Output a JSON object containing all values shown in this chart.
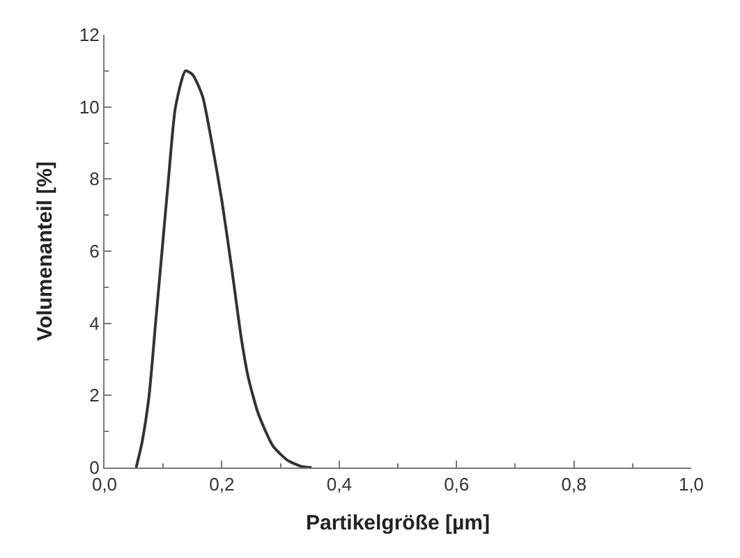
{
  "chart_data": {
    "type": "line",
    "xlabel": "Partikelgröße [µm]",
    "ylabel": "Volumenanteil [%]",
    "x": [
      0.054,
      0.064,
      0.076,
      0.087,
      0.098,
      0.109,
      0.121,
      0.138,
      0.15,
      0.167,
      0.183,
      0.2,
      0.217,
      0.233,
      0.245,
      0.262,
      0.287,
      0.312,
      0.336,
      0.353
    ],
    "series": [
      {
        "color": "#333333",
        "values": [
          0,
          0.7,
          2.0,
          4.0,
          6.0,
          8.0,
          10.0,
          11.0,
          10.9,
          10.3,
          9.0,
          7.4,
          5.5,
          3.6,
          2.5,
          1.5,
          0.6,
          0.2,
          0.03,
          0
        ]
      }
    ],
    "xlim": [
      0,
      1
    ],
    "ylim": [
      0,
      12
    ],
    "xticks": [
      {
        "value": 0,
        "label": "0,0"
      },
      {
        "value": 0.2,
        "label": "0,2"
      },
      {
        "value": 0.4,
        "label": "0,4"
      },
      {
        "value": 0.6,
        "label": "0,6"
      },
      {
        "value": 0.8,
        "label": "0,8"
      },
      {
        "value": 1,
        "label": "1,0"
      }
    ],
    "yticks": [
      0,
      2,
      4,
      6,
      8,
      10,
      12
    ],
    "legend": false,
    "marker": "none",
    "line_style": "solid"
  }
}
